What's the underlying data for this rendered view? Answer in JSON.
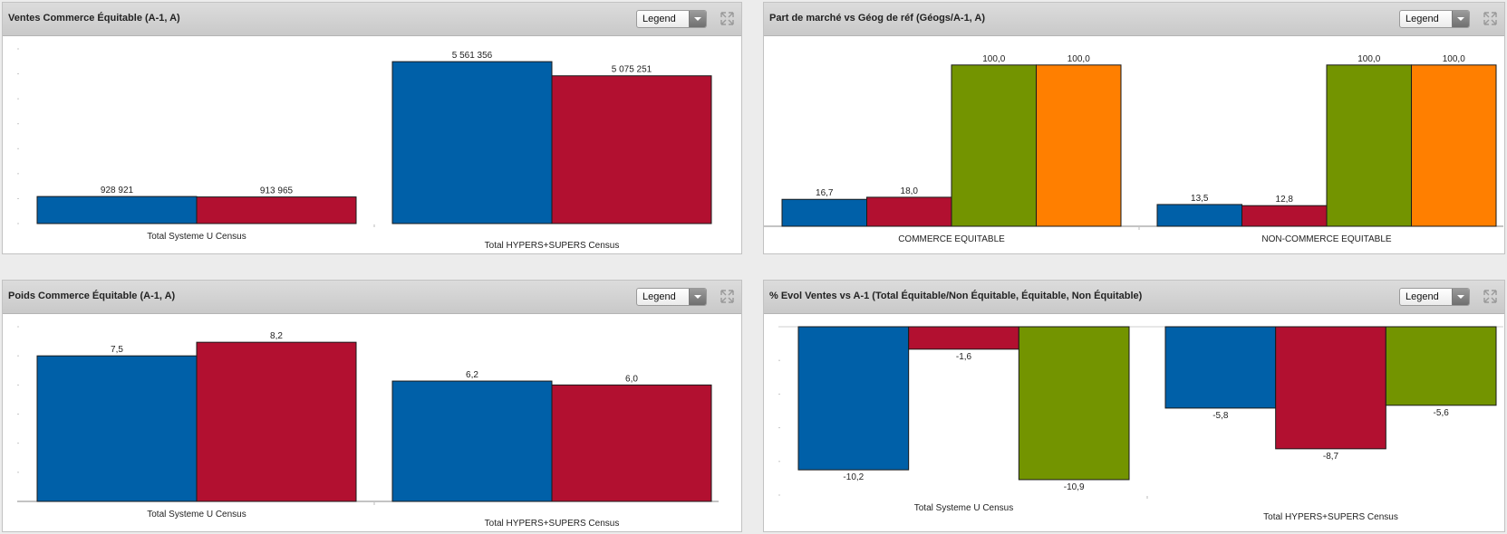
{
  "panels": [
    {
      "title": "Ventes Commerce Équitable (A-1, A)",
      "legend_label": "Legend"
    },
    {
      "title": "Part de marché vs Géog de réf (Géogs/A-1, A)",
      "legend_label": "Legend"
    },
    {
      "title": "Poids Commerce Équitable (A-1, A)",
      "legend_label": "Legend"
    },
    {
      "title": "% Evol Ventes vs A-1 (Total Équitable/Non Équitable, Équitable, Non Équitable)",
      "legend_label": "Legend"
    }
  ],
  "colors": {
    "blue": "#0060a8",
    "red": "#b21030",
    "green": "#739400",
    "orange": "#ff7f00"
  },
  "chart_data": [
    {
      "type": "bar",
      "title": "Ventes Commerce Équitable (A-1, A)",
      "categories": [
        "Total Systeme U Census",
        "Total HYPERS+SUPERS Census"
      ],
      "series": [
        {
          "values": [
            928921,
            5561356
          ],
          "labels": [
            "928 921",
            "5 561 356"
          ],
          "color": "blue"
        },
        {
          "values": [
            913965,
            5075251
          ],
          "labels": [
            "913 965",
            "5 075 251"
          ],
          "color": "red"
        }
      ],
      "ylim": [
        0,
        6000000
      ],
      "grid": false
    },
    {
      "type": "bar",
      "title": "Part de marché vs Géog de réf (Géogs/A-1, A)",
      "categories": [
        "COMMERCE EQUITABLE",
        "NON-COMMERCE EQUITABLE"
      ],
      "series": [
        {
          "values": [
            16.7,
            13.5
          ],
          "labels": [
            "16,7",
            "13,5"
          ],
          "color": "blue"
        },
        {
          "values": [
            18.0,
            12.8
          ],
          "labels": [
            "18,0",
            "12,8"
          ],
          "color": "red"
        },
        {
          "values": [
            100.0,
            100.0
          ],
          "labels": [
            "100,0",
            "100,0"
          ],
          "color": "green"
        },
        {
          "values": [
            100.0,
            100.0
          ],
          "labels": [
            "100,0",
            "100,0"
          ],
          "color": "orange"
        }
      ],
      "ylim": [
        0,
        110
      ],
      "grid": false
    },
    {
      "type": "bar",
      "title": "Poids Commerce Équitable (A-1, A)",
      "categories": [
        "Total Systeme U Census",
        "Total HYPERS+SUPERS Census"
      ],
      "series": [
        {
          "values": [
            7.5,
            6.2
          ],
          "labels": [
            "7,5",
            "6,2"
          ],
          "color": "blue"
        },
        {
          "values": [
            8.2,
            6.0
          ],
          "labels": [
            "8,2",
            "6,0"
          ],
          "color": "red"
        }
      ],
      "ylim": [
        0,
        9
      ],
      "grid": false
    },
    {
      "type": "bar",
      "title": "% Evol Ventes vs A-1 (Total Équitable/Non Équitable, Équitable, Non Équitable)",
      "categories": [
        "Total Systeme U Census",
        "Total HYPERS+SUPERS Census"
      ],
      "series": [
        {
          "values": [
            -10.2,
            -5.8
          ],
          "labels": [
            "-10,2",
            "-5,8"
          ],
          "color": "blue"
        },
        {
          "values": [
            -1.6,
            -8.7
          ],
          "labels": [
            "-1,6",
            "-8,7"
          ],
          "color": "red"
        },
        {
          "values": [
            -10.9,
            -5.6
          ],
          "labels": [
            "-10,9",
            "-5,6"
          ],
          "color": "green"
        }
      ],
      "ylim": [
        -12,
        0
      ],
      "grid": false
    }
  ]
}
